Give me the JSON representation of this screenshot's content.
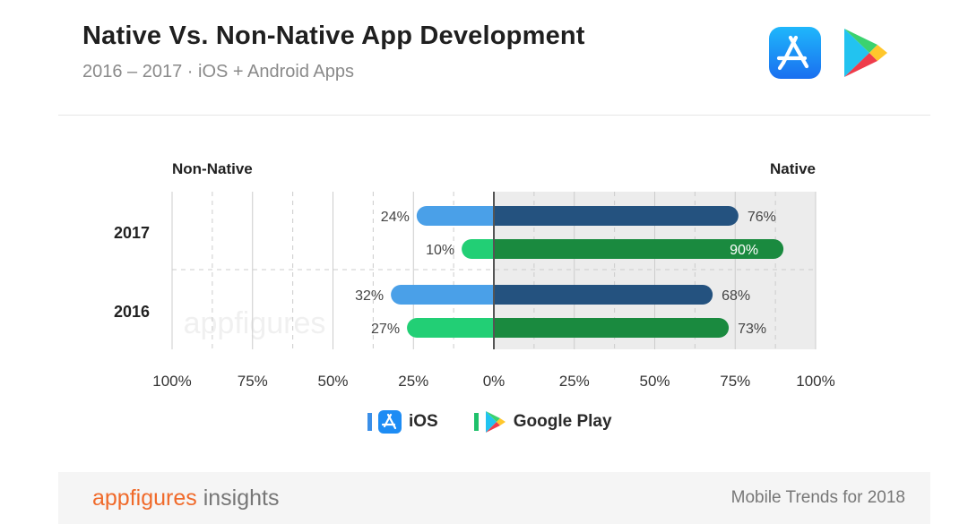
{
  "header": {
    "title": "Native Vs. Non-Native App Development",
    "subtitle": "2016 – 2017 · iOS + Android Apps",
    "icons": [
      "app-store-icon",
      "google-play-icon"
    ]
  },
  "chart_data": {
    "type": "bar",
    "orientation": "horizontal-diverging",
    "left_label": "Non-Native",
    "right_label": "Native",
    "xlim": [
      -100,
      100
    ],
    "x_ticks": [
      "100%",
      "75%",
      "50%",
      "25%",
      "0%",
      "25%",
      "50%",
      "75%",
      "100%"
    ],
    "groups": [
      {
        "year": "2017",
        "bars": [
          {
            "series": "iOS",
            "non_native": 24,
            "native": 76,
            "non_native_label": "24%",
            "native_label": "76%"
          },
          {
            "series": "Google Play",
            "non_native": 10,
            "native": 90,
            "non_native_label": "10%",
            "native_label": "90%"
          }
        ]
      },
      {
        "year": "2016",
        "bars": [
          {
            "series": "iOS",
            "non_native": 32,
            "native": 68,
            "non_native_label": "32%",
            "native_label": "68%"
          },
          {
            "series": "Google Play",
            "non_native": 27,
            "native": 73,
            "non_native_label": "27%",
            "native_label": "73%"
          }
        ]
      }
    ],
    "colors": {
      "ios_non_native": "#4aa0e8",
      "ios_native": "#24527f",
      "gp_non_native": "#22cf75",
      "gp_native": "#1a8a3f",
      "native_bg": "#ececec",
      "axis": "#555555",
      "grid": "#cccccc",
      "label": "#444444"
    },
    "watermark": "appfigures"
  },
  "legend": {
    "items": [
      {
        "label": "iOS",
        "color": "#3b8fe8",
        "icon": "app-store-icon"
      },
      {
        "label": "Google Play",
        "color": "#1fc16b",
        "icon": "google-play-icon"
      }
    ]
  },
  "footer": {
    "brand": "appfigures",
    "brand_suffix": "insights",
    "note": "Mobile Trends for 2018"
  }
}
